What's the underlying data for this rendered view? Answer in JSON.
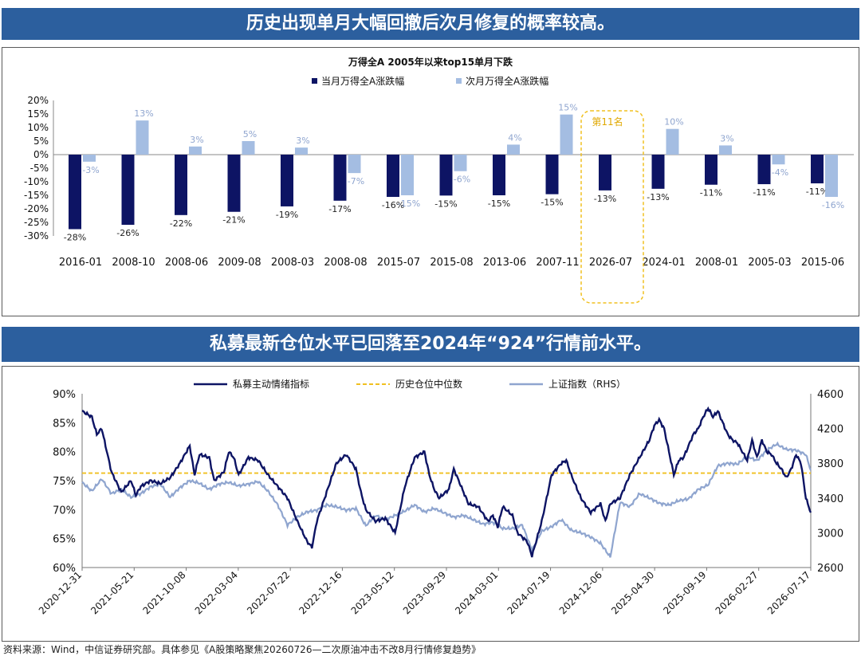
{
  "top_banner": "历史出现单月大幅回撤后次月修复的概率较高。",
  "bottom_banner": "私募最新仓位水平已回落至2024年“924”行情前水平。",
  "footer": "资料来源：Wind，中信证券研究部。具体参见《A股策略聚焦20260726—二次原油冲击不改8月行情修复趋势》",
  "colors": {
    "banner": "#2c5f9e",
    "dark": "#0d1464",
    "light": "#a4bde2",
    "gold": "#f0c020",
    "index": "#8fa5cf"
  },
  "chart_data": [
    {
      "type": "bar",
      "title": "万得全A 2005年以来top15单月下跌",
      "categories": [
        "2016-01",
        "2008-10",
        "2008-06",
        "2009-08",
        "2008-03",
        "2008-08",
        "2015-07",
        "2015-08",
        "2013-06",
        "2007-11",
        "2026-07",
        "2024-01",
        "2008-01",
        "2005-03",
        "2015-06"
      ],
      "series": [
        {
          "name": "当月万得全A涨跌幅",
          "values": [
            -27.5,
            -25.9,
            -22.3,
            -21.1,
            -19.1,
            -17.0,
            -15.6,
            -15.1,
            -15.0,
            -14.6,
            -13.2,
            -12.6,
            -11.1,
            -10.9,
            -10.6
          ],
          "labels": [
            "-28%",
            "-26%",
            "-22%",
            "-21%",
            "-19%",
            "-17%",
            "-16%",
            "-15%",
            "-15%",
            "-15%",
            "-13%",
            "-13%",
            "-11%",
            "-11%",
            "-11%"
          ]
        },
        {
          "name": "次月万得全A涨跌幅",
          "values": [
            -2.6,
            12.6,
            3.0,
            5.0,
            2.6,
            -6.8,
            -15.0,
            -6.1,
            3.7,
            14.8,
            null,
            9.5,
            3.4,
            -3.6,
            -15.6
          ],
          "labels": [
            "-3%",
            "13%",
            "3%",
            "5%",
            "3%",
            "-7%",
            "-15%",
            "-6%",
            "4%",
            "15%",
            "",
            "10%",
            "3%",
            "-4%",
            "-16%"
          ]
        }
      ],
      "yticks": [
        "20%",
        "15%",
        "10%",
        "5%",
        "0%",
        "-5%",
        "-10%",
        "-15%",
        "-20%",
        "-25%",
        "-30%"
      ],
      "ylim": [
        -30,
        20
      ],
      "annotation": {
        "category": "2026-07",
        "text": "第11名"
      },
      "legend_position": "top"
    },
    {
      "type": "line",
      "legend": [
        "私募主动情绪指标",
        "历史仓位中位数",
        "上证指数（RHS）"
      ],
      "x_ticks": [
        "2020-12-31",
        "2021-05-21",
        "2021-10-08",
        "2022-03-04",
        "2022-07-22",
        "2022-12-16",
        "2023-05-12",
        "2023-09-29",
        "2024-03-01",
        "2024-07-19",
        "2024-12-06",
        "2025-04-30",
        "2025-09-19",
        "2026-02-27",
        "2026-07-17"
      ],
      "y_left_ticks": [
        "90%",
        "85%",
        "80%",
        "75%",
        "70%",
        "65%",
        "60%"
      ],
      "y_left_range": [
        60,
        90
      ],
      "y_right_ticks": [
        "4600",
        "4200",
        "3800",
        "3400",
        "3000",
        "2600"
      ],
      "y_right_range": [
        2600,
        4600
      ],
      "median": 76.3,
      "sentiment_anchors": [
        [
          0,
          87
        ],
        [
          1,
          86.5
        ],
        [
          2,
          86
        ],
        [
          3,
          83
        ],
        [
          4,
          84
        ],
        [
          6,
          76.5
        ],
        [
          8,
          73
        ],
        [
          9,
          74
        ],
        [
          10,
          75
        ],
        [
          11,
          72.5
        ],
        [
          12,
          74
        ],
        [
          14,
          75
        ],
        [
          16,
          74.5
        ],
        [
          18,
          75.5
        ],
        [
          20,
          78
        ],
        [
          22,
          81
        ],
        [
          23,
          76
        ],
        [
          24,
          79.5
        ],
        [
          26,
          79
        ],
        [
          27,
          75
        ],
        [
          29,
          76.5
        ],
        [
          30,
          80
        ],
        [
          31,
          79
        ],
        [
          32,
          76
        ],
        [
          34,
          79
        ],
        [
          36,
          78.5
        ],
        [
          38,
          76
        ],
        [
          40,
          74
        ],
        [
          42,
          72
        ],
        [
          44,
          68
        ],
        [
          46,
          64.5
        ],
        [
          47,
          63.5
        ],
        [
          48,
          68
        ],
        [
          50,
          73
        ],
        [
          52,
          78
        ],
        [
          54,
          79.5
        ],
        [
          56,
          77
        ],
        [
          57,
          73
        ],
        [
          58,
          70
        ],
        [
          60,
          68
        ],
        [
          62,
          68.5
        ],
        [
          64,
          66
        ],
        [
          66,
          74
        ],
        [
          68,
          79
        ],
        [
          70,
          80
        ],
        [
          71,
          76
        ],
        [
          72,
          73.5
        ],
        [
          73,
          72
        ],
        [
          75,
          73.5
        ],
        [
          76,
          77
        ],
        [
          77,
          75
        ],
        [
          79,
          71
        ],
        [
          81,
          70.5
        ],
        [
          83,
          68
        ],
        [
          84,
          69
        ],
        [
          85,
          67
        ],
        [
          86,
          70.5
        ],
        [
          88,
          69
        ],
        [
          89,
          66
        ],
        [
          91,
          64.5
        ],
        [
          92,
          62
        ],
        [
          93,
          65
        ],
        [
          94,
          68
        ],
        [
          96,
          76
        ],
        [
          98,
          78
        ],
        [
          99,
          78.5
        ],
        [
          100,
          76
        ],
        [
          102,
          72
        ],
        [
          104,
          69.5
        ],
        [
          106,
          71
        ],
        [
          107,
          68
        ],
        [
          108,
          71
        ],
        [
          110,
          72
        ],
        [
          112,
          76
        ],
        [
          114,
          79
        ],
        [
          116,
          82
        ],
        [
          117,
          84.5
        ],
        [
          118,
          85.5
        ],
        [
          119,
          84
        ],
        [
          120,
          80
        ],
        [
          121,
          76
        ],
        [
          122,
          78.5
        ],
        [
          123,
          79
        ],
        [
          124,
          81
        ],
        [
          125,
          83
        ],
        [
          126,
          84
        ],
        [
          127,
          86
        ],
        [
          128,
          87.5
        ],
        [
          129,
          86
        ],
        [
          130,
          87
        ],
        [
          131,
          85
        ],
        [
          132,
          83
        ],
        [
          133,
          82
        ],
        [
          134,
          81.5
        ],
        [
          135,
          80
        ],
        [
          136,
          78.5
        ],
        [
          137,
          82
        ],
        [
          138,
          79
        ],
        [
          139,
          82
        ],
        [
          140,
          80
        ],
        [
          141,
          79.5
        ],
        [
          142,
          78
        ],
        [
          143,
          77
        ],
        [
          144,
          75.5
        ],
        [
          145,
          77
        ],
        [
          146,
          79.5
        ],
        [
          147,
          78
        ],
        [
          148,
          72
        ],
        [
          149,
          69.5
        ]
      ],
      "index_anchors": [
        [
          0,
          3580
        ],
        [
          2,
          3480
        ],
        [
          4,
          3620
        ],
        [
          6,
          3450
        ],
        [
          8,
          3500
        ],
        [
          10,
          3410
        ],
        [
          12,
          3450
        ],
        [
          14,
          3530
        ],
        [
          16,
          3560
        ],
        [
          18,
          3410
        ],
        [
          20,
          3520
        ],
        [
          22,
          3600
        ],
        [
          24,
          3570
        ],
        [
          26,
          3500
        ],
        [
          28,
          3560
        ],
        [
          30,
          3580
        ],
        [
          32,
          3540
        ],
        [
          34,
          3560
        ],
        [
          36,
          3590
        ],
        [
          38,
          3480
        ],
        [
          40,
          3320
        ],
        [
          42,
          3090
        ],
        [
          44,
          3180
        ],
        [
          46,
          3240
        ],
        [
          48,
          3260
        ],
        [
          50,
          3320
        ],
        [
          52,
          3300
        ],
        [
          54,
          3260
        ],
        [
          56,
          3280
        ],
        [
          58,
          3080
        ],
        [
          60,
          3200
        ],
        [
          62,
          3150
        ],
        [
          64,
          3200
        ],
        [
          66,
          3250
        ],
        [
          68,
          3320
        ],
        [
          70,
          3240
        ],
        [
          72,
          3280
        ],
        [
          74,
          3230
        ],
        [
          76,
          3180
        ],
        [
          78,
          3200
        ],
        [
          80,
          3150
        ],
        [
          82,
          3100
        ],
        [
          84,
          3120
        ],
        [
          86,
          3050
        ],
        [
          88,
          3050
        ],
        [
          90,
          3090
        ],
        [
          92,
          2800
        ],
        [
          94,
          3020
        ],
        [
          96,
          3070
        ],
        [
          98,
          3150
        ],
        [
          100,
          3030
        ],
        [
          102,
          3000
        ],
        [
          104,
          2950
        ],
        [
          106,
          2880
        ],
        [
          108,
          2720
        ],
        [
          110,
          3350
        ],
        [
          112,
          3300
        ],
        [
          114,
          3450
        ],
        [
          116,
          3400
        ],
        [
          118,
          3340
        ],
        [
          120,
          3320
        ],
        [
          122,
          3370
        ],
        [
          124,
          3390
        ],
        [
          126,
          3500
        ],
        [
          128,
          3550
        ],
        [
          130,
          3770
        ],
        [
          132,
          3800
        ],
        [
          134,
          3790
        ],
        [
          136,
          3880
        ],
        [
          138,
          3830
        ],
        [
          140,
          3950
        ],
        [
          142,
          4020
        ],
        [
          144,
          3960
        ],
        [
          146,
          3950
        ],
        [
          148,
          3900
        ],
        [
          149,
          3720
        ]
      ]
    }
  ]
}
